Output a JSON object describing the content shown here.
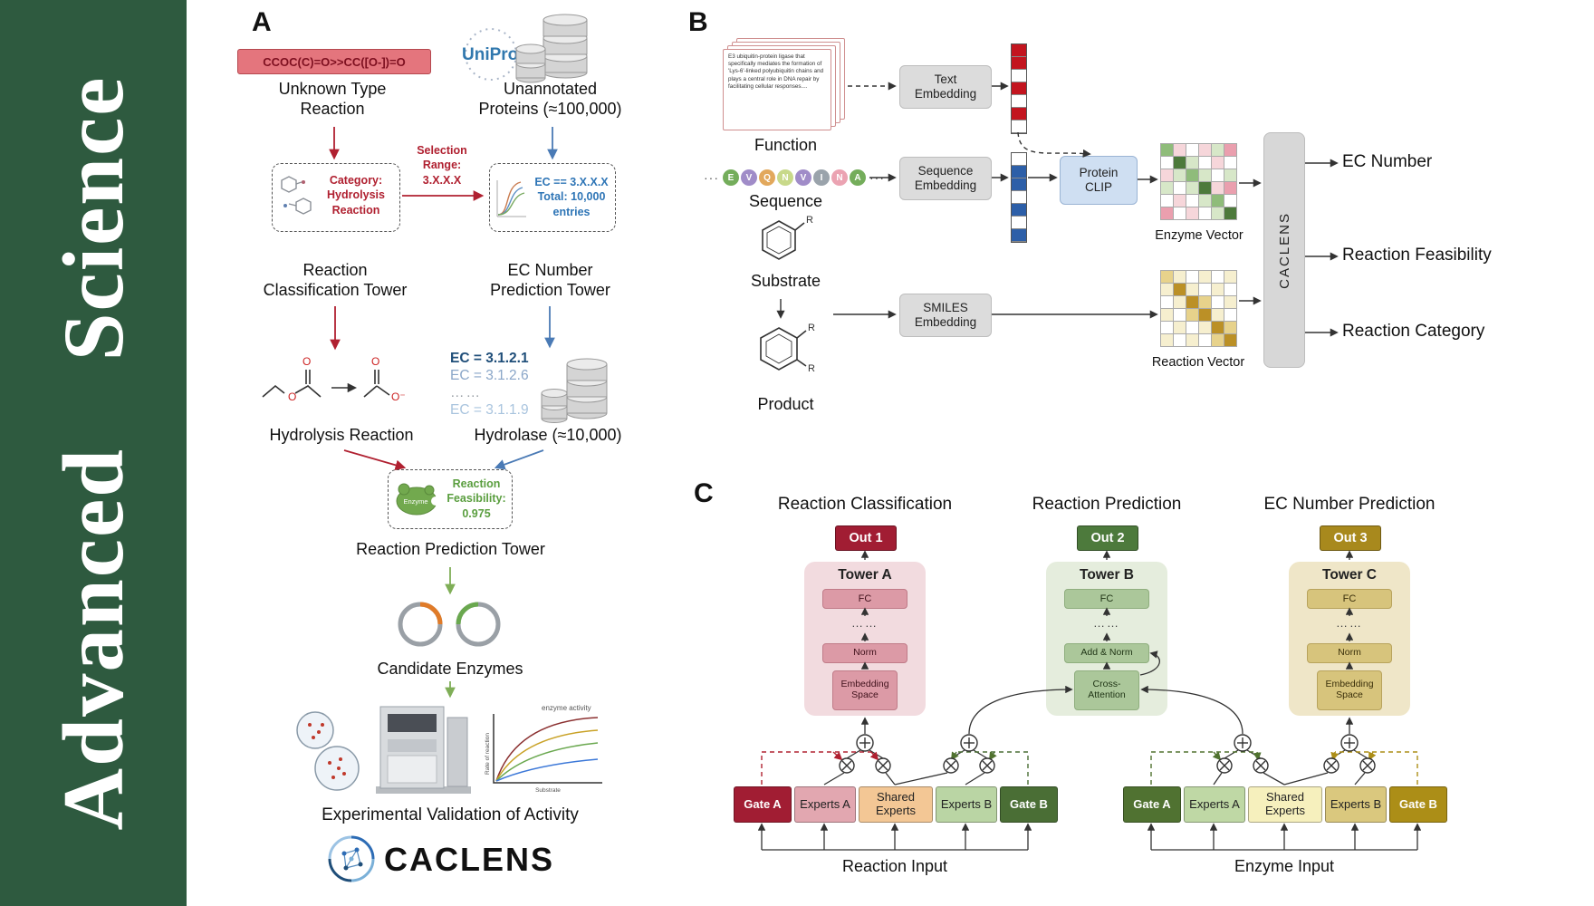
{
  "journal": {
    "name": "Advanced Science"
  },
  "colors": {
    "band_green": "#2e5a3f",
    "smiles_box_red": "#e4757d",
    "accent_red": "#b02030",
    "accent_blue": "#2e75b6",
    "accent_green": "#5a9e3f",
    "out1": "#a11d33",
    "out2": "#4d7a3c",
    "out3": "#a8891d",
    "gate_b_left": "#4a6e35",
    "gate_a_right": "#507231",
    "gate_b_right": "#ac8e17"
  },
  "palette": {
    "w": "#ffffff",
    "r": "#c3151f",
    "b": "#2d5fa8",
    "g1": "#d7e7c8",
    "g2": "#8fbc7a",
    "g3": "#4d7a3b",
    "p1": "#f6d6da",
    "p2": "#ea9fae",
    "y1": "#f6efcf",
    "y2": "#e7d28b",
    "y3": "#bb9026"
  },
  "panelA": {
    "label": "A",
    "smiles": "CCOC(C)=O>>CC([O-])=O",
    "unknown_reaction": [
      "Unknown Type",
      "Reaction"
    ],
    "uniprot": "UniProt",
    "unannotated": [
      "Unannotated",
      "Proteins (≈100,000)"
    ],
    "category": [
      "Category:",
      "Hydrolysis",
      "Reaction"
    ],
    "selection": [
      "Selection",
      "Range:",
      "3.X.X.X"
    ],
    "ec_filter": [
      "EC == 3.X.X.X",
      "Total: 10,000",
      "entries"
    ],
    "tower_classification": [
      "Reaction",
      "Classification Tower"
    ],
    "tower_ec": [
      "EC Number",
      "Prediction Tower"
    ],
    "chem_atoms": [
      "O",
      "O",
      "O",
      "O⁻"
    ],
    "hydrolysis": "Hydrolysis Reaction",
    "ec_list": [
      "EC = 3.1.2.1",
      "EC = 3.1.2.6",
      "……",
      "EC = 3.1.1.9"
    ],
    "hydrolase": "Hydrolase (≈10,000)",
    "enzyme_badge": "Enzyme",
    "feasibility": [
      "Reaction",
      "Feasibility:",
      "0.975"
    ],
    "tower_prediction": "Reaction Prediction Tower",
    "candidates": "Candidate Enzymes",
    "plot": {
      "legend": "enzyme activity",
      "ylabel": "Rate of reaction",
      "xlabel": "Substrate"
    },
    "validation": "Experimental Validation of Activity",
    "logo": "CACLENS"
  },
  "panelB": {
    "label": "B",
    "function_text": "E3 ubiquitin-protein ligase that specifically mediates the formation of 'Lys-6'-linked polyubiquitin chains and plays a central role in DNA repair by facilitating cellular responses....",
    "function_label": "Function",
    "text_embedding": [
      "Text",
      "Embedding"
    ],
    "sequence": {
      "ellipsis": "···",
      "letters": [
        "E",
        "V",
        "Q",
        "N",
        "V",
        "I",
        "N",
        "A"
      ],
      "colors": [
        "#74ad5b",
        "#a08cc8",
        "#e2a85c",
        "#c8d98a",
        "#a08cc8",
        "#9aa3ab",
        "#eba3b2",
        "#74ad5b"
      ]
    },
    "sequence_label": "Sequence",
    "sequence_embedding": [
      "Sequence",
      "Embedding"
    ],
    "protein_clip": [
      "Protein",
      "CLIP"
    ],
    "enzyme_vector_label": "Enzyme Vector",
    "substrate_label": "Substrate",
    "r_label": "R",
    "product_label": "Product",
    "smiles_embedding": [
      "SMILES",
      "Embedding"
    ],
    "reaction_vector_label": "Reaction Vector",
    "caclens": "CACLENS",
    "outputs": [
      "EC Number",
      "Reaction Feasibility",
      "Reaction Category"
    ],
    "vectors": {
      "text": [
        "r",
        "r",
        "w",
        "r",
        "w",
        "r",
        "w"
      ],
      "sequence": [
        "w",
        "b",
        "b",
        "w",
        "b",
        "w",
        "b"
      ]
    },
    "grids": {
      "enzyme": [
        "g2",
        "p1",
        "w",
        "p1",
        "g1",
        "p2",
        "w",
        "g3",
        "g1",
        "w",
        "p1",
        "w",
        "p1",
        "g1",
        "g2",
        "g1",
        "w",
        "g1",
        "g1",
        "w",
        "g1",
        "g3",
        "p1",
        "p2",
        "w",
        "p1",
        "w",
        "g1",
        "g2",
        "w",
        "p2",
        "w",
        "p1",
        "w",
        "g1",
        "g3"
      ],
      "reaction": [
        "y2",
        "y1",
        "w",
        "y1",
        "w",
        "y1",
        "y1",
        "y3",
        "y1",
        "w",
        "y1",
        "w",
        "w",
        "y1",
        "y3",
        "y2",
        "w",
        "y1",
        "y1",
        "w",
        "y2",
        "y3",
        "y1",
        "w",
        "w",
        "y1",
        "w",
        "y1",
        "y3",
        "y2",
        "y1",
        "w",
        "y1",
        "w",
        "y2",
        "y3"
      ]
    }
  },
  "panelC": {
    "label": "C",
    "towers": [
      {
        "title": "Reaction Classification",
        "out": "Out 1",
        "name": "Tower A",
        "fc": "FC",
        "dots": "……",
        "mid": "Norm",
        "base": "Embedding Space"
      },
      {
        "title": "Reaction Prediction",
        "out": "Out 2",
        "name": "Tower B",
        "fc": "FC",
        "dots": "……",
        "mid": "Add & Norm",
        "base": "Cross-Attention"
      },
      {
        "title": "EC Number Prediction",
        "out": "Out 3",
        "name": "Tower C",
        "fc": "FC",
        "dots": "……",
        "mid": "Norm",
        "base": "Embedding Space"
      }
    ],
    "moe_left": {
      "boxes": [
        "Gate A",
        "Experts A",
        "Shared Experts",
        "Experts B",
        "Gate B"
      ],
      "label": "Reaction Input"
    },
    "moe_right": {
      "boxes": [
        "Gate A",
        "Experts A",
        "Shared Experts",
        "Experts B",
        "Gate B"
      ],
      "label": "Enzyme Input"
    }
  }
}
